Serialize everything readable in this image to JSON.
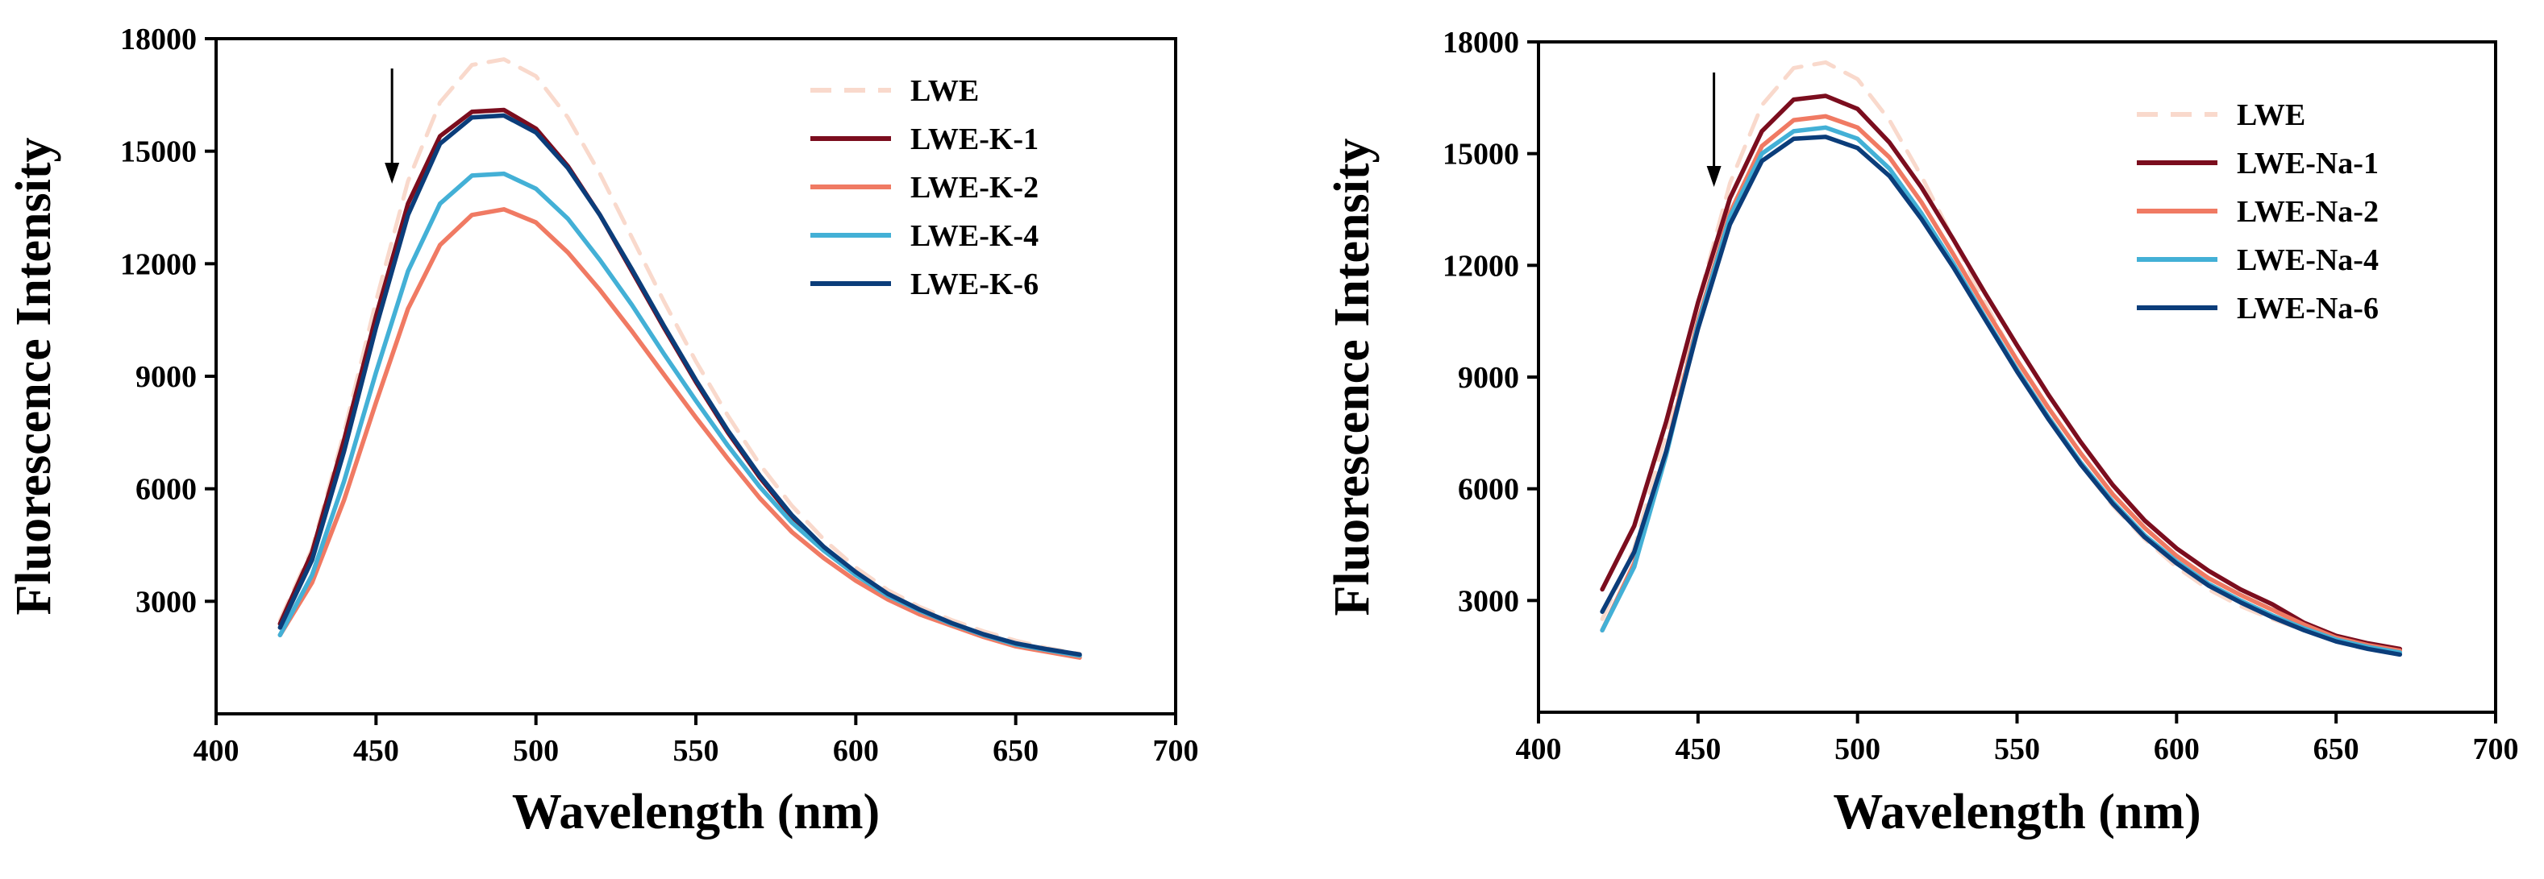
{
  "chart_data": [
    {
      "type": "line",
      "title": "",
      "xlabel": "Wavelength (nm)",
      "ylabel": "Fluorescence Intensity",
      "xlim": [
        400,
        700
      ],
      "ylim": [
        0,
        18000
      ],
      "xticks": [
        400,
        450,
        500,
        550,
        600,
        650,
        700
      ],
      "yticks": [
        3000,
        6000,
        9000,
        12000,
        15000,
        18000
      ],
      "legend_position": "top-right",
      "annotation": "downward arrow at ~455 nm",
      "x": [
        420,
        430,
        440,
        450,
        460,
        470,
        480,
        490,
        500,
        510,
        520,
        530,
        540,
        550,
        560,
        570,
        580,
        590,
        600,
        610,
        620,
        630,
        640,
        650,
        660,
        670
      ],
      "series": [
        {
          "name": "LWE",
          "color": "#f9d9cc",
          "dashed": true,
          "values": [
            2500,
            4400,
            7500,
            11000,
            14200,
            16300,
            17300,
            17450,
            17000,
            15900,
            14400,
            12700,
            11000,
            9400,
            7950,
            6650,
            5550,
            4650,
            3900,
            3300,
            2850,
            2500,
            2200,
            1950,
            1750,
            1600
          ]
        },
        {
          "name": "LWE-K-1",
          "color": "#7b0d1e",
          "dashed": false,
          "values": [
            2400,
            4300,
            7300,
            10600,
            13600,
            15400,
            16050,
            16100,
            15600,
            14600,
            13300,
            11800,
            10300,
            8850,
            7500,
            6300,
            5250,
            4400,
            3750,
            3150,
            2750,
            2400,
            2100,
            1850,
            1700,
            1550
          ]
        },
        {
          "name": "LWE-K-2",
          "color": "#f07a63",
          "dashed": false,
          "values": [
            2100,
            3500,
            5700,
            8300,
            10800,
            12500,
            13300,
            13450,
            13100,
            12300,
            11300,
            10200,
            9050,
            7900,
            6800,
            5750,
            4850,
            4150,
            3550,
            3050,
            2650,
            2350,
            2050,
            1800,
            1650,
            1500
          ]
        },
        {
          "name": "LWE-K-4",
          "color": "#43b0d6",
          "dashed": false,
          "values": [
            2100,
            3700,
            6200,
            9100,
            11800,
            13600,
            14350,
            14400,
            14000,
            13200,
            12100,
            10900,
            9600,
            8350,
            7150,
            6050,
            5100,
            4350,
            3700,
            3150,
            2750,
            2400,
            2100,
            1850,
            1700,
            1550
          ]
        },
        {
          "name": "LWE-K-6",
          "color": "#0b3d7a",
          "dashed": false,
          "values": [
            2300,
            4100,
            7000,
            10300,
            13300,
            15200,
            15900,
            15950,
            15500,
            14550,
            13300,
            11850,
            10350,
            8900,
            7550,
            6350,
            5300,
            4450,
            3780,
            3200,
            2780,
            2420,
            2120,
            1880,
            1720,
            1580
          ]
        }
      ]
    },
    {
      "type": "line",
      "title": "",
      "xlabel": "Wavelength (nm)",
      "ylabel": "Fluorescence Intensity",
      "xlim": [
        400,
        700
      ],
      "ylim": [
        0,
        18000
      ],
      "xticks": [
        400,
        450,
        500,
        550,
        600,
        650,
        700
      ],
      "yticks": [
        3000,
        6000,
        9000,
        12000,
        15000,
        18000
      ],
      "legend_position": "top-right",
      "annotation": "downward arrow at ~455 nm",
      "x": [
        420,
        430,
        440,
        450,
        460,
        470,
        480,
        490,
        500,
        510,
        520,
        530,
        540,
        550,
        560,
        570,
        580,
        590,
        600,
        610,
        620,
        630,
        640,
        650,
        660,
        670
      ],
      "series": [
        {
          "name": "LWE",
          "color": "#f9d9cc",
          "dashed": true,
          "values": [
            2500,
            4400,
            7500,
            11000,
            14200,
            16300,
            17300,
            17450,
            17000,
            15900,
            14400,
            12700,
            11000,
            9400,
            7950,
            6650,
            5550,
            4650,
            3900,
            3300,
            2850,
            2500,
            2200,
            1950,
            1750,
            1600
          ]
        },
        {
          "name": "LWE-Na-1",
          "color": "#7b0d1e",
          "dashed": false,
          "values": [
            3300,
            5000,
            7800,
            11000,
            13800,
            15600,
            16450,
            16550,
            16200,
            15300,
            14100,
            12700,
            11250,
            9850,
            8500,
            7250,
            6100,
            5150,
            4400,
            3800,
            3300,
            2900,
            2400,
            2050,
            1850,
            1700
          ]
        },
        {
          "name": "LWE-Na-2",
          "color": "#f07a63",
          "dashed": false,
          "values": [
            2200,
            4000,
            7000,
            10500,
            13400,
            15200,
            15900,
            16000,
            15700,
            14900,
            13700,
            12300,
            10850,
            9450,
            8150,
            6950,
            5850,
            4950,
            4200,
            3600,
            3150,
            2750,
            2350,
            2000,
            1800,
            1650
          ]
        },
        {
          "name": "LWE-Na-4",
          "color": "#43b0d6",
          "dashed": false,
          "values": [
            2200,
            3900,
            6900,
            10400,
            13300,
            15000,
            15600,
            15700,
            15400,
            14600,
            13400,
            12050,
            10600,
            9200,
            7900,
            6700,
            5650,
            4750,
            4050,
            3450,
            3000,
            2600,
            2250,
            1950,
            1750,
            1600
          ]
        },
        {
          "name": "LWE-Na-6",
          "color": "#0b3d7a",
          "dashed": false,
          "values": [
            2700,
            4300,
            7000,
            10300,
            13100,
            14800,
            15400,
            15450,
            15150,
            14400,
            13250,
            11950,
            10550,
            9150,
            7850,
            6650,
            5600,
            4700,
            4000,
            3400,
            2950,
            2550,
            2200,
            1900,
            1700,
            1550
          ]
        }
      ]
    }
  ]
}
